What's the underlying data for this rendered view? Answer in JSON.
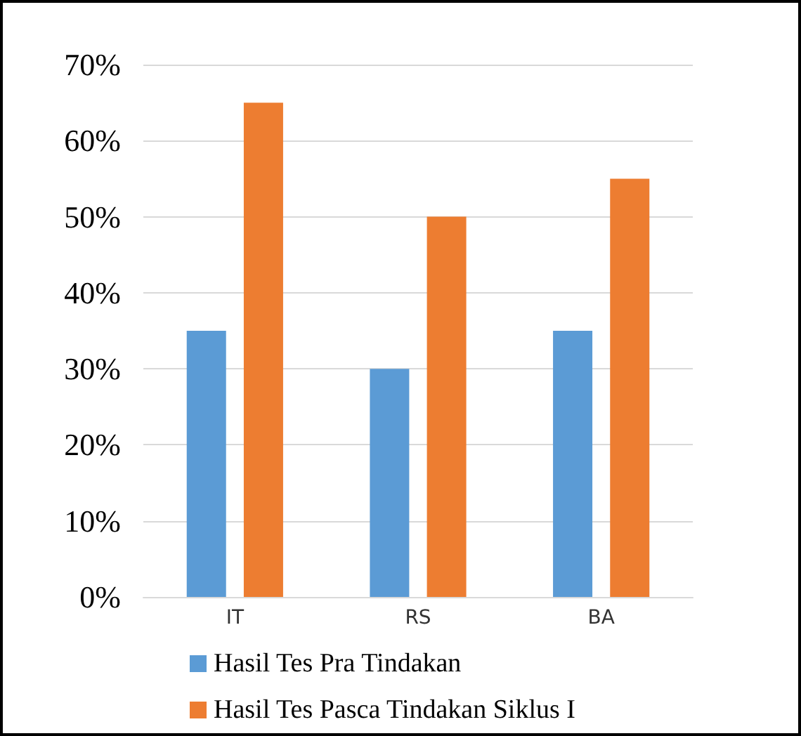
{
  "chart_data": {
    "type": "bar",
    "categories": [
      "IT",
      "RS",
      "BA"
    ],
    "series": [
      {
        "name": "Hasil Tes Pra Tindakan",
        "color": "#5b9bd5",
        "values": [
          35,
          30,
          35
        ]
      },
      {
        "name": "Hasil Tes Pasca Tindakan Siklus I",
        "color": "#ed7d31",
        "values": [
          65,
          50,
          55
        ]
      }
    ],
    "ylim": [
      0,
      70
    ],
    "yticks": [
      {
        "value": 0,
        "label": "0%"
      },
      {
        "value": 10,
        "label": "10%"
      },
      {
        "value": 20,
        "label": "20%"
      },
      {
        "value": 30,
        "label": "30%"
      },
      {
        "value": 40,
        "label": "40%"
      },
      {
        "value": 50,
        "label": "50%"
      },
      {
        "value": 60,
        "label": "60%"
      },
      {
        "value": 70,
        "label": "70%"
      }
    ],
    "grid": "y",
    "legend": "bottom"
  }
}
